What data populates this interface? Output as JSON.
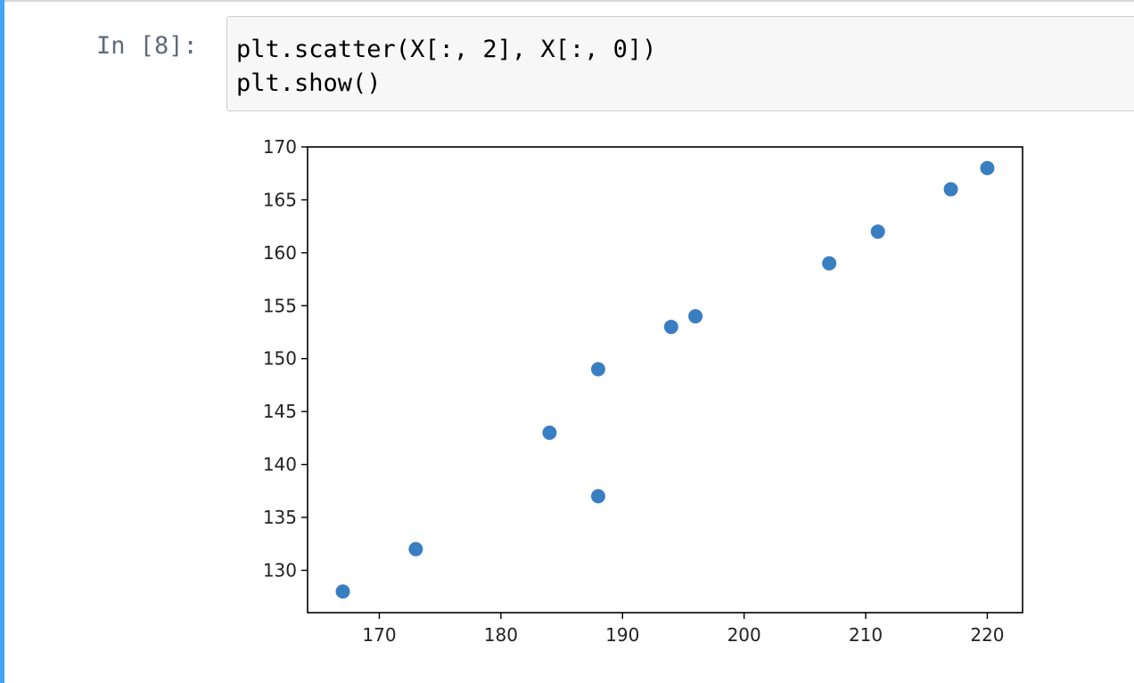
{
  "notebook": {
    "prompt": "In [8]:",
    "code_lines": [
      "plt.scatter(X[:, 2], X[:, 0])",
      "plt.show()"
    ]
  },
  "colors": {
    "selection_bar": "#42a5f5",
    "marker": "#3a7ec2"
  },
  "chart_data": {
    "type": "scatter",
    "x": [
      167,
      173,
      184,
      188,
      188,
      194,
      196,
      207,
      211,
      217,
      220
    ],
    "y": [
      128,
      132,
      143,
      149,
      137,
      153,
      154,
      159,
      162,
      166,
      168
    ],
    "xlim": [
      164.1,
      222.9
    ],
    "ylim": [
      126,
      170
    ],
    "xticks": [
      170,
      180,
      190,
      200,
      210,
      220
    ],
    "yticks": [
      130,
      135,
      140,
      145,
      150,
      155,
      160,
      165,
      170
    ],
    "xtick_labels": [
      "170",
      "180",
      "190",
      "200",
      "210",
      "220"
    ],
    "ytick_labels": [
      "130",
      "135",
      "140",
      "145",
      "150",
      "155",
      "160",
      "165",
      "170"
    ],
    "grid": false
  }
}
